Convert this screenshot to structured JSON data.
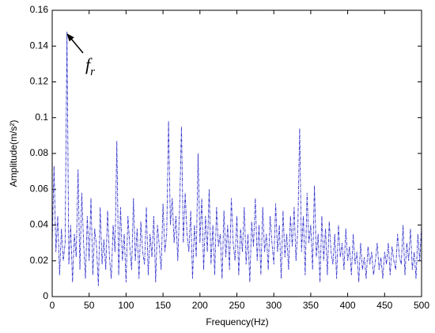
{
  "chart_data": {
    "type": "line",
    "xlabel": "Frequency(Hz)",
    "ylabel": "Amplitude(m/s²)",
    "annotation": {
      "text": "f",
      "subscript": "r"
    },
    "color": "#3333cc",
    "xlim": [
      0,
      500
    ],
    "xticks": [
      0,
      50,
      100,
      150,
      200,
      250,
      300,
      350,
      400,
      450,
      500
    ],
    "ylim": [
      0,
      0.16
    ],
    "yticks": [
      0,
      0.02,
      0.04,
      0.06,
      0.08,
      0.1,
      0.12,
      0.14,
      0.16
    ],
    "x": [
      0,
      2.5,
      5,
      7.5,
      10,
      12.5,
      15,
      17.5,
      20,
      22.5,
      25,
      27.5,
      30,
      32.5,
      35,
      37.5,
      40,
      42.5,
      45,
      47.5,
      50,
      52.5,
      55,
      57.5,
      60,
      62.5,
      65,
      67.5,
      70,
      72.5,
      75,
      77.5,
      80,
      82.5,
      85,
      87.5,
      90,
      92.5,
      95,
      97.5,
      100,
      102.5,
      105,
      107.5,
      110,
      112.5,
      115,
      117.5,
      120,
      122.5,
      125,
      127.5,
      130,
      132.5,
      135,
      137.5,
      140,
      142.5,
      145,
      147.5,
      150,
      152.5,
      155,
      157.5,
      160,
      162.5,
      165,
      167.5,
      170,
      172.5,
      175,
      177.5,
      180,
      182.5,
      185,
      187.5,
      190,
      192.5,
      195,
      197.5,
      200,
      202.5,
      205,
      207.5,
      210,
      212.5,
      215,
      217.5,
      220,
      222.5,
      225,
      227.5,
      230,
      232.5,
      235,
      237.5,
      240,
      242.5,
      245,
      247.5,
      250,
      252.5,
      255,
      257.5,
      260,
      262.5,
      265,
      267.5,
      270,
      272.5,
      275,
      277.5,
      280,
      282.5,
      285,
      287.5,
      290,
      292.5,
      295,
      297.5,
      300,
      302.5,
      305,
      307.5,
      310,
      312.5,
      315,
      317.5,
      320,
      322.5,
      325,
      327.5,
      330,
      332.5,
      335,
      337.5,
      340,
      342.5,
      345,
      347.5,
      350,
      352.5,
      355,
      357.5,
      360,
      362.5,
      365,
      367.5,
      370,
      372.5,
      375,
      377.5,
      380,
      382.5,
      385,
      387.5,
      390,
      392.5,
      395,
      397.5,
      400,
      402.5,
      405,
      407.5,
      410,
      412.5,
      415,
      417.5,
      420,
      422.5,
      425,
      427.5,
      430,
      432.5,
      435,
      437.5,
      440,
      442.5,
      445,
      447.5,
      450,
      452.5,
      455,
      457.5,
      460,
      462.5,
      465,
      467.5,
      470,
      472.5,
      475,
      477.5,
      480,
      482.5,
      485,
      487.5,
      490,
      492.5,
      495,
      497.5,
      500
    ],
    "values": [
      0.03,
      0.073,
      0.025,
      0.045,
      0.012,
      0.038,
      0.02,
      0.03,
      0.148,
      0.018,
      0.04,
      0.008,
      0.035,
      0.022,
      0.071,
      0.015,
      0.058,
      0.03,
      0.01,
      0.045,
      0.02,
      0.055,
      0.012,
      0.038,
      0.028,
      0.006,
      0.05,
      0.018,
      0.032,
      0.015,
      0.048,
      0.022,
      0.01,
      0.04,
      0.025,
      0.087,
      0.012,
      0.05,
      0.02,
      0.035,
      0.008,
      0.045,
      0.028,
      0.015,
      0.055,
      0.02,
      0.038,
      0.01,
      0.042,
      0.025,
      0.018,
      0.05,
      0.012,
      0.035,
      0.022,
      0.045,
      0.008,
      0.04,
      0.028,
      0.015,
      0.052,
      0.025,
      0.035,
      0.098,
      0.04,
      0.055,
      0.03,
      0.045,
      0.02,
      0.05,
      0.095,
      0.03,
      0.058,
      0.035,
      0.025,
      0.048,
      0.01,
      0.04,
      0.022,
      0.08,
      0.03,
      0.055,
      0.015,
      0.045,
      0.025,
      0.06,
      0.018,
      0.04,
      0.012,
      0.05,
      0.028,
      0.035,
      0.01,
      0.048,
      0.022,
      0.04,
      0.015,
      0.055,
      0.03,
      0.02,
      0.045,
      0.012,
      0.038,
      0.025,
      0.05,
      0.018,
      0.035,
      0.008,
      0.042,
      0.028,
      0.055,
      0.02,
      0.04,
      0.012,
      0.05,
      0.025,
      0.035,
      0.015,
      0.045,
      0.03,
      0.018,
      0.052,
      0.025,
      0.04,
      0.01,
      0.048,
      0.022,
      0.035,
      0.015,
      0.045,
      0.028,
      0.05,
      0.02,
      0.038,
      0.094,
      0.025,
      0.045,
      0.012,
      0.058,
      0.03,
      0.04,
      0.015,
      0.062,
      0.022,
      0.035,
      0.008,
      0.045,
      0.02,
      0.038,
      0.012,
      0.042,
      0.025,
      0.018,
      0.035,
      0.01,
      0.04,
      0.022,
      0.03,
      0.015,
      0.038,
      0.02,
      0.028,
      0.012,
      0.035,
      0.018,
      0.025,
      0.008,
      0.03,
      0.015,
      0.022,
      0.01,
      0.028,
      0.018,
      0.025,
      0.012,
      0.02,
      0.03,
      0.015,
      0.022,
      0.01,
      0.025,
      0.018,
      0.03,
      0.012,
      0.028,
      0.02,
      0.015,
      0.035,
      0.022,
      0.018,
      0.04,
      0.012,
      0.03,
      0.02,
      0.038,
      0.015,
      0.025,
      0.01,
      0.035,
      0.02,
      0.04
    ]
  }
}
